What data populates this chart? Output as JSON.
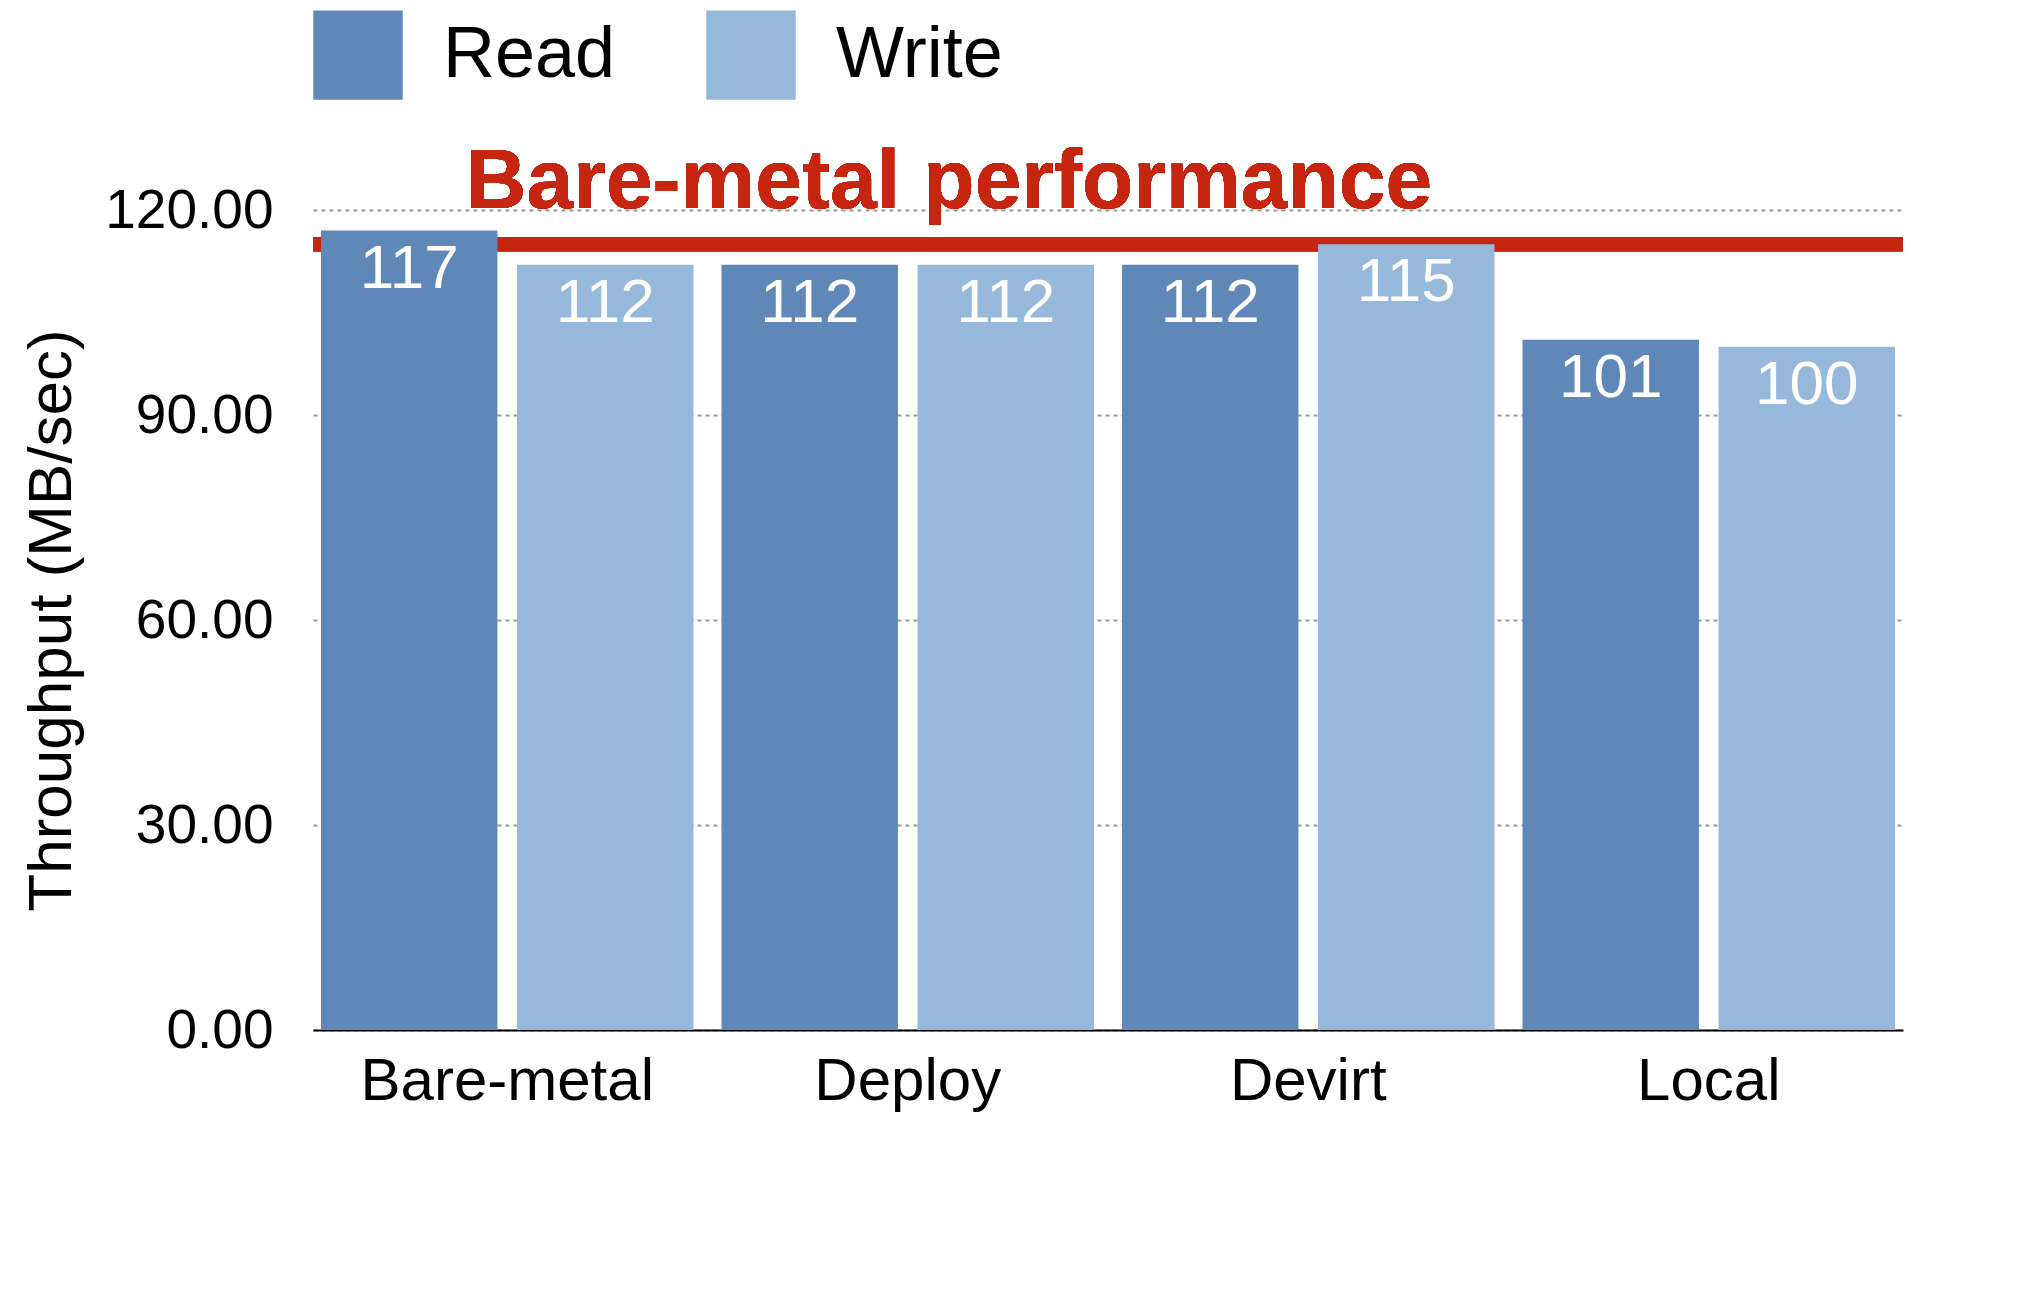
{
  "chart_data": {
    "type": "bar",
    "ylabel": "Throughput (MB/sec)",
    "categories": [
      "Bare-metal",
      "Deploy",
      "Devirt",
      "Local"
    ],
    "series": [
      {
        "name": "Read",
        "color": "#5f87b8",
        "values": [
          117,
          112,
          112,
          101
        ]
      },
      {
        "name": "Write",
        "color": "#96b8db",
        "values": [
          112,
          112,
          115,
          100
        ]
      }
    ],
    "ylim": [
      0,
      120
    ],
    "yticks": [
      {
        "value": 0,
        "label": "0.00"
      },
      {
        "value": 30,
        "label": "30.00"
      },
      {
        "value": 60,
        "label": "60.00"
      },
      {
        "value": 90,
        "label": "90.00"
      },
      {
        "value": 120,
        "label": "120.00"
      }
    ],
    "grid": "y",
    "legend": "top",
    "data_labels": true,
    "ref_lines": [
      {
        "axis": "y",
        "value": 115,
        "label": "Bare-metal performance",
        "color": "#c6250f"
      }
    ]
  }
}
